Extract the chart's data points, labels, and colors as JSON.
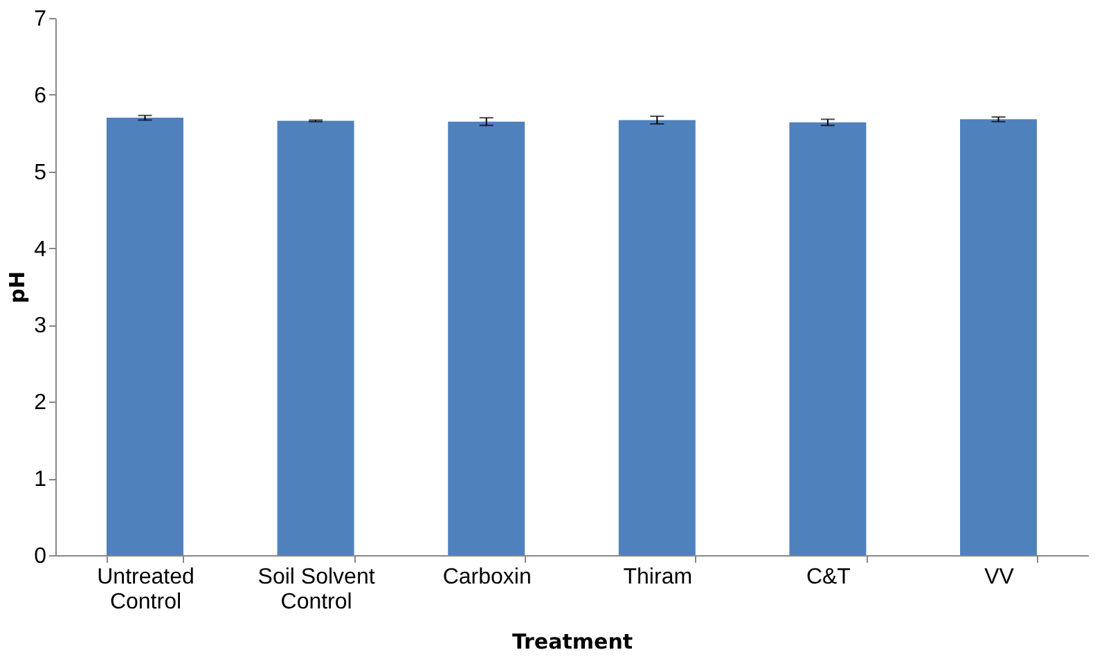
{
  "chart_data": {
    "type": "bar",
    "xlabel": "Treatment",
    "ylabel": "pH",
    "categories": [
      "Untreated Control",
      "Soil Solvent Control",
      "Carboxin",
      "Thiram",
      "C&T",
      "VV"
    ],
    "values": [
      5.7,
      5.66,
      5.65,
      5.67,
      5.64,
      5.68
    ],
    "errors": [
      0.03,
      0.01,
      0.05,
      0.05,
      0.04,
      0.03
    ],
    "color": "#4f81bd",
    "ylim": [
      0,
      7
    ],
    "yticks": [
      0,
      1,
      2,
      3,
      4,
      5,
      6,
      7
    ],
    "grid": false
  }
}
